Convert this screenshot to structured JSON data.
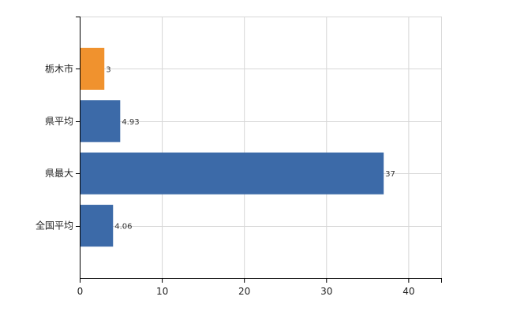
{
  "chart_data": {
    "type": "bar",
    "orientation": "horizontal",
    "categories": [
      "栃木市",
      "県平均",
      "県最大",
      "全国平均"
    ],
    "values": [
      3,
      4.93,
      37,
      4.06
    ],
    "data_labels": [
      "3",
      "4.93",
      "37",
      "4.06"
    ],
    "bar_colors": [
      "#f0922e",
      "#3c6aa8",
      "#3c6aa8",
      "#3c6aa8"
    ],
    "xlim": [
      0,
      44
    ],
    "x_ticks": [
      0,
      10,
      20,
      30,
      40
    ],
    "x_tick_labels": [
      "0",
      "10",
      "20",
      "30",
      "40"
    ],
    "grid": true,
    "legend": "none"
  },
  "colors": {
    "highlight": "#f0922e",
    "default": "#3c6aa8",
    "grid": "#d7d7d7",
    "axis": "#000000"
  }
}
